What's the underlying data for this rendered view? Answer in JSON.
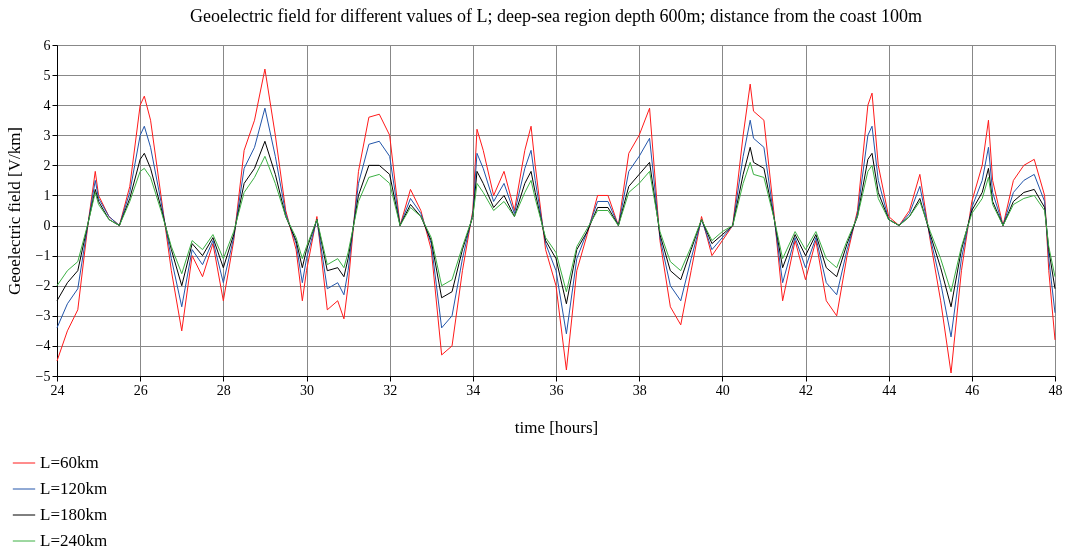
{
  "chart_data": {
    "type": "line",
    "title": "Geoelectric field for different values of L; deep-sea region depth 600m; distance from the coast 100m",
    "xlabel": "time [hours]",
    "ylabel": "Geoelectric field [V/km]",
    "x": [
      24.0,
      24.25,
      24.5,
      24.75,
      24.92,
      25.0,
      25.25,
      25.5,
      25.75,
      26.0,
      26.1,
      26.25,
      26.5,
      26.75,
      27.0,
      27.25,
      27.5,
      27.75,
      28.0,
      28.25,
      28.5,
      28.75,
      29.0,
      29.25,
      29.5,
      29.75,
      29.9,
      30.0,
      30.25,
      30.5,
      30.75,
      30.9,
      31.0,
      31.25,
      31.5,
      31.75,
      32.0,
      32.25,
      32.5,
      32.75,
      33.0,
      33.25,
      33.5,
      33.75,
      34.0,
      34.1,
      34.25,
      34.5,
      34.75,
      35.0,
      35.25,
      35.4,
      35.5,
      35.75,
      36.0,
      36.25,
      36.5,
      36.75,
      37.0,
      37.25,
      37.5,
      37.75,
      38.0,
      38.25,
      38.5,
      38.75,
      39.0,
      39.25,
      39.5,
      39.75,
      40.0,
      40.25,
      40.5,
      40.67,
      40.75,
      41.0,
      41.25,
      41.45,
      41.75,
      42.0,
      42.25,
      42.5,
      42.75,
      43.0,
      43.25,
      43.5,
      43.6,
      43.75,
      44.0,
      44.25,
      44.5,
      44.75,
      45.0,
      45.25,
      45.5,
      45.75,
      46.0,
      46.25,
      46.4,
      46.5,
      46.75,
      47.0,
      47.25,
      47.5,
      47.75,
      47.85,
      48.0
    ],
    "series": [
      {
        "name": "L=60km",
        "color": "#ff1a1a",
        "values": [
          -4.5,
          -3.5,
          -2.8,
          0.1,
          1.8,
          1.0,
          0.3,
          0.0,
          1.3,
          4.0,
          4.3,
          3.5,
          1.0,
          -1.5,
          -3.5,
          -1.0,
          -1.7,
          -0.6,
          -2.5,
          -0.5,
          2.5,
          3.5,
          5.2,
          3.0,
          0.5,
          -0.8,
          -2.5,
          -1.5,
          0.3,
          -2.8,
          -2.5,
          -3.1,
          -2.0,
          1.8,
          3.6,
          3.7,
          3.0,
          0.0,
          1.2,
          0.5,
          -0.8,
          -4.3,
          -4.0,
          -1.5,
          0.5,
          3.2,
          2.5,
          1.0,
          1.8,
          0.5,
          2.5,
          3.3,
          2.0,
          -0.8,
          -2.0,
          -4.8,
          -1.5,
          -0.3,
          1.0,
          1.0,
          0.0,
          2.4,
          3.0,
          3.9,
          -0.5,
          -2.7,
          -3.3,
          -1.5,
          0.3,
          -1.0,
          -0.5,
          0.0,
          3.0,
          4.7,
          3.8,
          3.5,
          0.3,
          -2.5,
          -0.5,
          -1.8,
          -0.5,
          -2.5,
          -3.0,
          -1.0,
          0.5,
          4.0,
          4.4,
          2.0,
          0.3,
          0.0,
          0.5,
          1.7,
          -0.5,
          -2.5,
          -4.9,
          -1.5,
          0.8,
          2.0,
          3.5,
          1.5,
          0.0,
          1.5,
          2.0,
          2.2,
          1.0,
          -1.5,
          -3.8
        ]
      },
      {
        "name": "L=120km",
        "color": "#2255aa",
        "values": [
          -3.4,
          -2.6,
          -2.1,
          0.1,
          1.5,
          0.9,
          0.3,
          0.0,
          1.1,
          3.0,
          3.3,
          2.6,
          0.8,
          -1.1,
          -2.7,
          -0.8,
          -1.3,
          -0.5,
          -1.9,
          -0.4,
          1.9,
          2.6,
          3.9,
          2.3,
          0.4,
          -0.6,
          -1.9,
          -1.1,
          0.2,
          -2.1,
          -1.9,
          -2.3,
          -1.5,
          1.4,
          2.7,
          2.8,
          2.3,
          0.0,
          0.9,
          0.4,
          -0.6,
          -3.4,
          -3.0,
          -1.1,
          0.4,
          2.4,
          1.9,
          0.8,
          1.4,
          0.4,
          1.9,
          2.5,
          1.5,
          -0.6,
          -1.5,
          -3.6,
          -1.1,
          -0.2,
          0.8,
          0.8,
          0.0,
          1.8,
          2.3,
          2.9,
          -0.4,
          -2.0,
          -2.5,
          -1.1,
          0.2,
          -0.8,
          -0.4,
          0.0,
          2.3,
          3.5,
          2.9,
          2.6,
          0.2,
          -1.9,
          -0.4,
          -1.4,
          -0.4,
          -1.9,
          -2.3,
          -0.8,
          0.4,
          3.0,
          3.3,
          1.5,
          0.2,
          0.0,
          0.4,
          1.3,
          -0.4,
          -1.9,
          -3.7,
          -1.1,
          0.6,
          1.5,
          2.6,
          1.1,
          0.0,
          1.1,
          1.5,
          1.7,
          0.8,
          -1.1,
          -2.9
        ]
      },
      {
        "name": "L=180km",
        "color": "#000000",
        "values": [
          -2.5,
          -1.9,
          -1.5,
          0.1,
          1.2,
          0.8,
          0.2,
          0.0,
          0.9,
          2.2,
          2.4,
          1.9,
          0.6,
          -0.8,
          -2.0,
          -0.6,
          -1.0,
          -0.4,
          -1.4,
          -0.3,
          1.4,
          1.9,
          2.8,
          1.7,
          0.3,
          -0.5,
          -1.4,
          -0.8,
          0.2,
          -1.5,
          -1.4,
          -1.7,
          -1.1,
          1.0,
          2.0,
          2.0,
          1.7,
          0.0,
          0.7,
          0.3,
          -0.5,
          -2.4,
          -2.2,
          -0.8,
          0.3,
          1.8,
          1.4,
          0.6,
          1.0,
          0.3,
          1.4,
          1.8,
          1.1,
          -0.5,
          -1.1,
          -2.6,
          -0.8,
          -0.2,
          0.6,
          0.6,
          0.0,
          1.3,
          1.7,
          2.1,
          -0.3,
          -1.5,
          -1.8,
          -0.8,
          0.2,
          -0.6,
          -0.3,
          0.0,
          1.7,
          2.6,
          2.1,
          1.9,
          0.2,
          -1.4,
          -0.3,
          -1.0,
          -0.3,
          -1.4,
          -1.7,
          -0.6,
          0.3,
          2.2,
          2.4,
          1.1,
          0.2,
          0.0,
          0.3,
          0.9,
          -0.3,
          -1.4,
          -2.7,
          -0.8,
          0.5,
          1.1,
          1.9,
          0.8,
          0.0,
          0.8,
          1.1,
          1.2,
          0.6,
          -0.8,
          -2.1
        ]
      },
      {
        "name": "L=240km",
        "color": "#3cb043",
        "values": [
          -2.0,
          -1.5,
          -1.2,
          0.1,
          1.1,
          0.7,
          0.2,
          0.0,
          0.8,
          1.8,
          1.9,
          1.6,
          0.5,
          -0.7,
          -1.6,
          -0.5,
          -0.8,
          -0.3,
          -1.1,
          -0.2,
          1.1,
          1.6,
          2.3,
          1.4,
          0.3,
          -0.4,
          -1.1,
          -0.7,
          0.2,
          -1.3,
          -1.1,
          -1.4,
          -0.9,
          0.8,
          1.6,
          1.7,
          1.4,
          0.0,
          0.6,
          0.3,
          -0.4,
          -2.0,
          -1.8,
          -0.7,
          0.3,
          1.4,
          1.1,
          0.5,
          0.8,
          0.3,
          1.1,
          1.5,
          0.9,
          -0.4,
          -0.9,
          -2.2,
          -0.7,
          -0.1,
          0.5,
          0.5,
          0.0,
          1.1,
          1.4,
          1.8,
          -0.2,
          -1.2,
          -1.5,
          -0.7,
          0.2,
          -0.5,
          -0.2,
          0.0,
          1.4,
          2.1,
          1.7,
          1.6,
          0.2,
          -1.1,
          -0.2,
          -0.8,
          -0.2,
          -1.1,
          -1.4,
          -0.5,
          0.3,
          1.8,
          2.0,
          0.9,
          0.2,
          0.0,
          0.3,
          0.8,
          -0.2,
          -1.1,
          -2.2,
          -0.7,
          0.4,
          0.9,
          1.6,
          0.7,
          0.0,
          0.7,
          0.9,
          1.0,
          0.5,
          -0.7,
          -1.7
        ]
      }
    ],
    "xlim": [
      24,
      48
    ],
    "xticks": [
      24,
      26,
      28,
      30,
      32,
      34,
      36,
      38,
      40,
      42,
      44,
      46,
      48
    ],
    "ylim": [
      -5,
      6
    ],
    "yticks": [
      -5,
      -4,
      -3,
      -2,
      -1,
      0,
      1,
      2,
      3,
      4,
      5,
      6
    ],
    "grid": true,
    "legend": "bottom left",
    "marker": "none",
    "line_style": "solid"
  }
}
